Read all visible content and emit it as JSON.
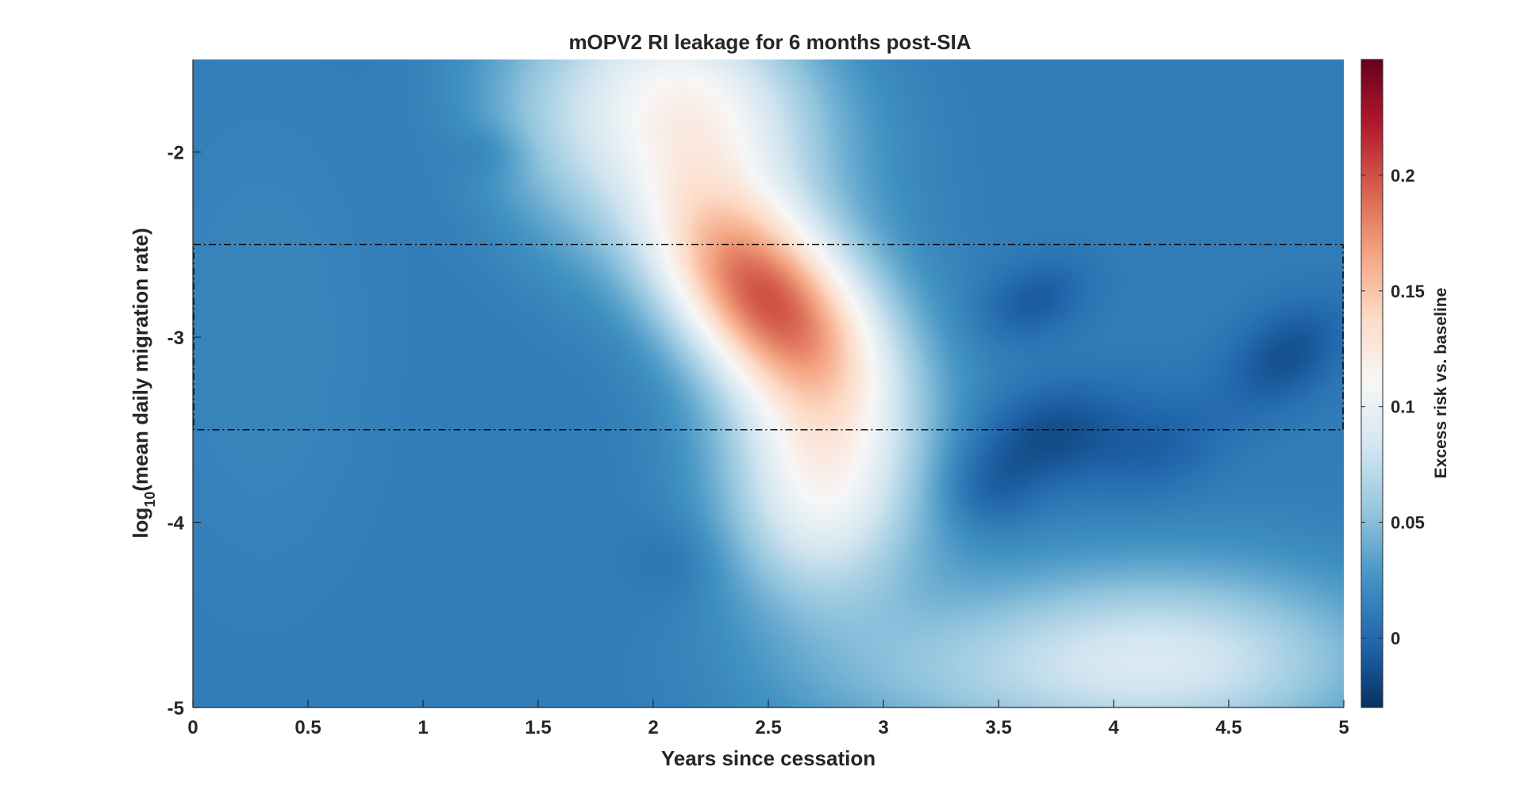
{
  "chart_data": {
    "type": "heatmap",
    "title": "mOPV2 RI leakage for 6 months post-SIA",
    "xlabel": "Years since cessation",
    "ylabel_main": "log",
    "ylabel_sub": "10",
    "ylabel_tail": "(mean daily migration rate)",
    "xlim": [
      0,
      5
    ],
    "ylim": [
      -5,
      -1.5
    ],
    "xticks": [
      0,
      0.5,
      1,
      1.5,
      2,
      2.5,
      3,
      3.5,
      4,
      4.5,
      5
    ],
    "xtick_labels": [
      "0",
      "0.5",
      "1",
      "1.5",
      "2",
      "2.5",
      "3",
      "3.5",
      "4",
      "4.5",
      "5"
    ],
    "yticks": [
      -2,
      -3,
      -4,
      -5
    ],
    "ytick_labels": [
      "-2",
      "-3",
      "-4",
      "-5"
    ],
    "colorbar": {
      "label": "Excess risk vs. baseline",
      "clim": [
        -0.03,
        0.25
      ],
      "ticks": [
        0,
        0.05,
        0.1,
        0.15,
        0.2
      ],
      "tick_labels": [
        "0",
        "0.05",
        "0.1",
        "0.15",
        "0.2"
      ],
      "colormap": [
        "#053061",
        "#2166ac",
        "#4393c3",
        "#92c5de",
        "#d1e5f0",
        "#f7f7f7",
        "#fddbc7",
        "#f4a582",
        "#d6604d",
        "#b2182b",
        "#67001f"
      ]
    },
    "highlight_box": {
      "x": [
        0,
        5
      ],
      "y": [
        -3.5,
        -2.5
      ],
      "style": "dash-dot"
    },
    "grid": false,
    "field": {
      "background": 0.012,
      "features": [
        {
          "x": 2.45,
          "y": -2.75,
          "sx": 0.33,
          "sy": 0.4,
          "rho": -0.45,
          "amp": 0.155
        },
        {
          "x": 2.15,
          "y": -1.75,
          "sx": 0.42,
          "sy": 0.45,
          "rho": -0.2,
          "amp": 0.1
        },
        {
          "x": 2.75,
          "y": -3.45,
          "sx": 0.32,
          "sy": 0.55,
          "rho": -0.1,
          "amp": 0.07
        },
        {
          "x": 2.7,
          "y": -3.95,
          "sx": 0.28,
          "sy": 0.4,
          "rho": 0.0,
          "amp": 0.045
        },
        {
          "x": 1.55,
          "y": -2.0,
          "sx": 0.25,
          "sy": 0.45,
          "rho": -0.3,
          "amp": 0.022
        },
        {
          "x": 4.2,
          "y": -4.75,
          "sx": 0.65,
          "sy": 0.35,
          "rho": 0.0,
          "amp": 0.075
        },
        {
          "x": 3.1,
          "y": -4.85,
          "sx": 0.5,
          "sy": 0.3,
          "rho": 0.0,
          "amp": 0.02
        },
        {
          "x": 0.3,
          "y": -3.0,
          "sx": 0.35,
          "sy": 0.9,
          "rho": 0.0,
          "amp": 0.006
        },
        {
          "x": 3.7,
          "y": -3.55,
          "sx": 0.25,
          "sy": 0.2,
          "rho": 0.3,
          "amp": -0.028
        },
        {
          "x": 3.65,
          "y": -2.8,
          "sx": 0.16,
          "sy": 0.15,
          "rho": 0.3,
          "amp": -0.02
        },
        {
          "x": 4.75,
          "y": -3.1,
          "sx": 0.18,
          "sy": 0.2,
          "rho": 0.4,
          "amp": -0.025
        },
        {
          "x": 4.2,
          "y": -3.6,
          "sx": 0.2,
          "sy": 0.2,
          "rho": 0.3,
          "amp": -0.015
        },
        {
          "x": 3.45,
          "y": -3.85,
          "sx": 0.14,
          "sy": 0.15,
          "rho": 0.0,
          "amp": -0.015
        },
        {
          "x": 1.3,
          "y": -2.0,
          "sx": 0.12,
          "sy": 0.1,
          "rho": 0.0,
          "amp": -0.01
        },
        {
          "x": 2.1,
          "y": -4.2,
          "sx": 0.15,
          "sy": 0.15,
          "rho": 0.0,
          "amp": -0.008
        }
      ]
    }
  }
}
